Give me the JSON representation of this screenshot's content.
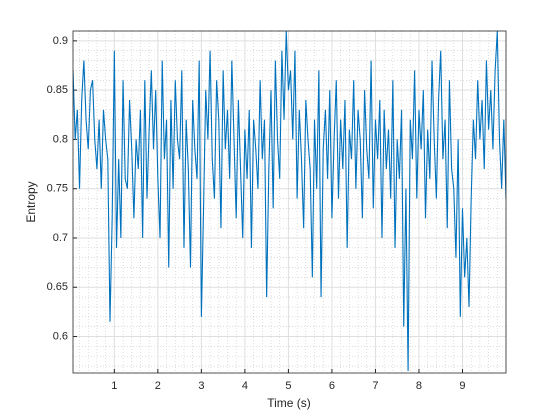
{
  "chart_data": {
    "type": "line",
    "xlabel": "Time (s)",
    "ylabel": "Entropy",
    "color": "#0072bd",
    "x": [
      0.05,
      0.1,
      0.15,
      0.2,
      0.25,
      0.3,
      0.35,
      0.4,
      0.45,
      0.5,
      0.55,
      0.6,
      0.65,
      0.7,
      0.75,
      0.8,
      0.85,
      0.9,
      0.95,
      1.0,
      1.05,
      1.1,
      1.15,
      1.2,
      1.25,
      1.3,
      1.35,
      1.4,
      1.45,
      1.5,
      1.55,
      1.6,
      1.65,
      1.7,
      1.75,
      1.8,
      1.85,
      1.9,
      1.95,
      2.0,
      2.05,
      2.1,
      2.15,
      2.2,
      2.25,
      2.3,
      2.35,
      2.4,
      2.45,
      2.5,
      2.55,
      2.6,
      2.65,
      2.7,
      2.75,
      2.8,
      2.85,
      2.9,
      2.95,
      3.0,
      3.05,
      3.1,
      3.15,
      3.2,
      3.25,
      3.3,
      3.35,
      3.4,
      3.45,
      3.5,
      3.55,
      3.6,
      3.65,
      3.7,
      3.75,
      3.8,
      3.85,
      3.9,
      3.95,
      4.0,
      4.05,
      4.1,
      4.15,
      4.2,
      4.25,
      4.3,
      4.35,
      4.4,
      4.45,
      4.5,
      4.55,
      4.6,
      4.65,
      4.7,
      4.75,
      4.8,
      4.85,
      4.9,
      4.95,
      5.0,
      5.05,
      5.1,
      5.15,
      5.2,
      5.25,
      5.3,
      5.35,
      5.4,
      5.45,
      5.5,
      5.55,
      5.6,
      5.65,
      5.7,
      5.75,
      5.8,
      5.85,
      5.9,
      5.95,
      6.0,
      6.05,
      6.1,
      6.15,
      6.2,
      6.25,
      6.3,
      6.35,
      6.4,
      6.45,
      6.5,
      6.55,
      6.6,
      6.65,
      6.7,
      6.75,
      6.8,
      6.85,
      6.9,
      6.95,
      7.0,
      7.05,
      7.1,
      7.15,
      7.2,
      7.25,
      7.3,
      7.35,
      7.4,
      7.45,
      7.5,
      7.55,
      7.6,
      7.65,
      7.7,
      7.75,
      7.8,
      7.85,
      7.9,
      7.95,
      8.0,
      8.05,
      8.1,
      8.15,
      8.2,
      8.25,
      8.3,
      8.35,
      8.4,
      8.45,
      8.5,
      8.55,
      8.6,
      8.65,
      8.7,
      8.75,
      8.8,
      8.85,
      8.9,
      8.95,
      9.0,
      9.05,
      9.1,
      9.15,
      9.2,
      9.25,
      9.3,
      9.35,
      9.4,
      9.45,
      9.5,
      9.55,
      9.6,
      9.65,
      9.7,
      9.75,
      9.8,
      9.85,
      9.9,
      9.95,
      10.0
    ],
    "values": [
      0.87,
      0.8,
      0.83,
      0.75,
      0.84,
      0.88,
      0.82,
      0.79,
      0.85,
      0.86,
      0.8,
      0.77,
      0.82,
      0.75,
      0.83,
      0.8,
      0.78,
      0.615,
      0.72,
      0.89,
      0.69,
      0.78,
      0.7,
      0.86,
      0.76,
      0.75,
      0.84,
      0.79,
      0.72,
      0.8,
      0.77,
      0.83,
      0.7,
      0.86,
      0.74,
      0.81,
      0.87,
      0.79,
      0.85,
      0.76,
      0.7,
      0.88,
      0.78,
      0.82,
      0.67,
      0.84,
      0.75,
      0.86,
      0.8,
      0.78,
      0.87,
      0.69,
      0.82,
      0.77,
      0.67,
      0.84,
      0.79,
      0.76,
      0.88,
      0.62,
      0.73,
      0.85,
      0.8,
      0.89,
      0.78,
      0.74,
      0.86,
      0.82,
      0.71,
      0.87,
      0.79,
      0.83,
      0.76,
      0.88,
      0.8,
      0.72,
      0.84,
      0.77,
      0.7,
      0.81,
      0.76,
      0.83,
      0.69,
      0.82,
      0.79,
      0.75,
      0.86,
      0.78,
      0.82,
      0.64,
      0.77,
      0.85,
      0.73,
      0.88,
      0.8,
      0.76,
      0.89,
      0.82,
      0.91,
      0.85,
      0.87,
      0.8,
      0.89,
      0.74,
      0.83,
      0.78,
      0.71,
      0.84,
      0.8,
      0.77,
      0.66,
      0.82,
      0.75,
      0.87,
      0.64,
      0.79,
      0.83,
      0.76,
      0.85,
      0.72,
      0.8,
      0.86,
      0.74,
      0.82,
      0.77,
      0.84,
      0.69,
      0.81,
      0.78,
      0.86,
      0.75,
      0.83,
      0.8,
      0.72,
      0.85,
      0.79,
      0.76,
      0.88,
      0.73,
      0.82,
      0.78,
      0.84,
      0.7,
      0.83,
      0.77,
      0.81,
      0.74,
      0.86,
      0.69,
      0.8,
      0.76,
      0.83,
      0.61,
      0.75,
      0.565,
      0.82,
      0.78,
      0.87,
      0.74,
      0.83,
      0.79,
      0.85,
      0.72,
      0.81,
      0.76,
      0.88,
      0.8,
      0.74,
      0.84,
      0.89,
      0.78,
      0.82,
      0.71,
      0.86,
      0.77,
      0.75,
      0.68,
      0.8,
      0.62,
      0.73,
      0.66,
      0.7,
      0.63,
      0.74,
      0.82,
      0.78,
      0.86,
      0.8,
      0.84,
      0.77,
      0.88,
      0.81,
      0.85,
      0.79,
      0.87,
      0.91,
      0.8,
      0.75,
      0.82,
      0.74
    ],
    "xlim": [
      0.05,
      10
    ],
    "ylim": [
      0.563,
      0.91
    ],
    "xticks": [
      1,
      2,
      3,
      4,
      5,
      6,
      7,
      8,
      9
    ],
    "yticks": [
      0.6,
      0.65,
      0.7,
      0.75,
      0.8,
      0.85,
      0.9
    ],
    "grid": true,
    "minor_grid": true,
    "xminor_step": 0.2,
    "yminor_step": 0.01
  }
}
